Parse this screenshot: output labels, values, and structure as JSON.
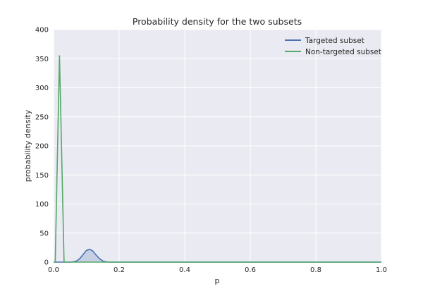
{
  "chart_data": {
    "type": "line",
    "title": "Probability density for the two subsets",
    "xlabel": "p",
    "ylabel": "probability density",
    "xlim": [
      0.0,
      1.0
    ],
    "ylim": [
      0,
      400
    ],
    "xticks": [
      "0.0",
      "0.2",
      "0.4",
      "0.6",
      "0.8",
      "1.0"
    ],
    "yticks": [
      "0",
      "50",
      "100",
      "150",
      "200",
      "250",
      "300",
      "350",
      "400"
    ],
    "grid": true,
    "legend_position": "top-right",
    "series": [
      {
        "name": "Targeted subset",
        "color": "#4c72b0",
        "fill": true,
        "x": [
          0.0,
          0.05,
          0.06,
          0.07,
          0.08,
          0.09,
          0.1,
          0.11,
          0.12,
          0.13,
          0.14,
          0.15,
          0.16,
          0.17,
          0.2,
          1.0
        ],
        "y": [
          0,
          0,
          0.5,
          2,
          6,
          13,
          20,
          22,
          19,
          12,
          6,
          2,
          0.5,
          0,
          0,
          0
        ]
      },
      {
        "name": "Non-targeted subset",
        "color": "#55a868",
        "fill": false,
        "x": [
          0.0,
          0.005,
          0.018,
          0.032,
          0.04,
          1.0
        ],
        "y": [
          0,
          0,
          355,
          0,
          0,
          0
        ]
      }
    ]
  }
}
